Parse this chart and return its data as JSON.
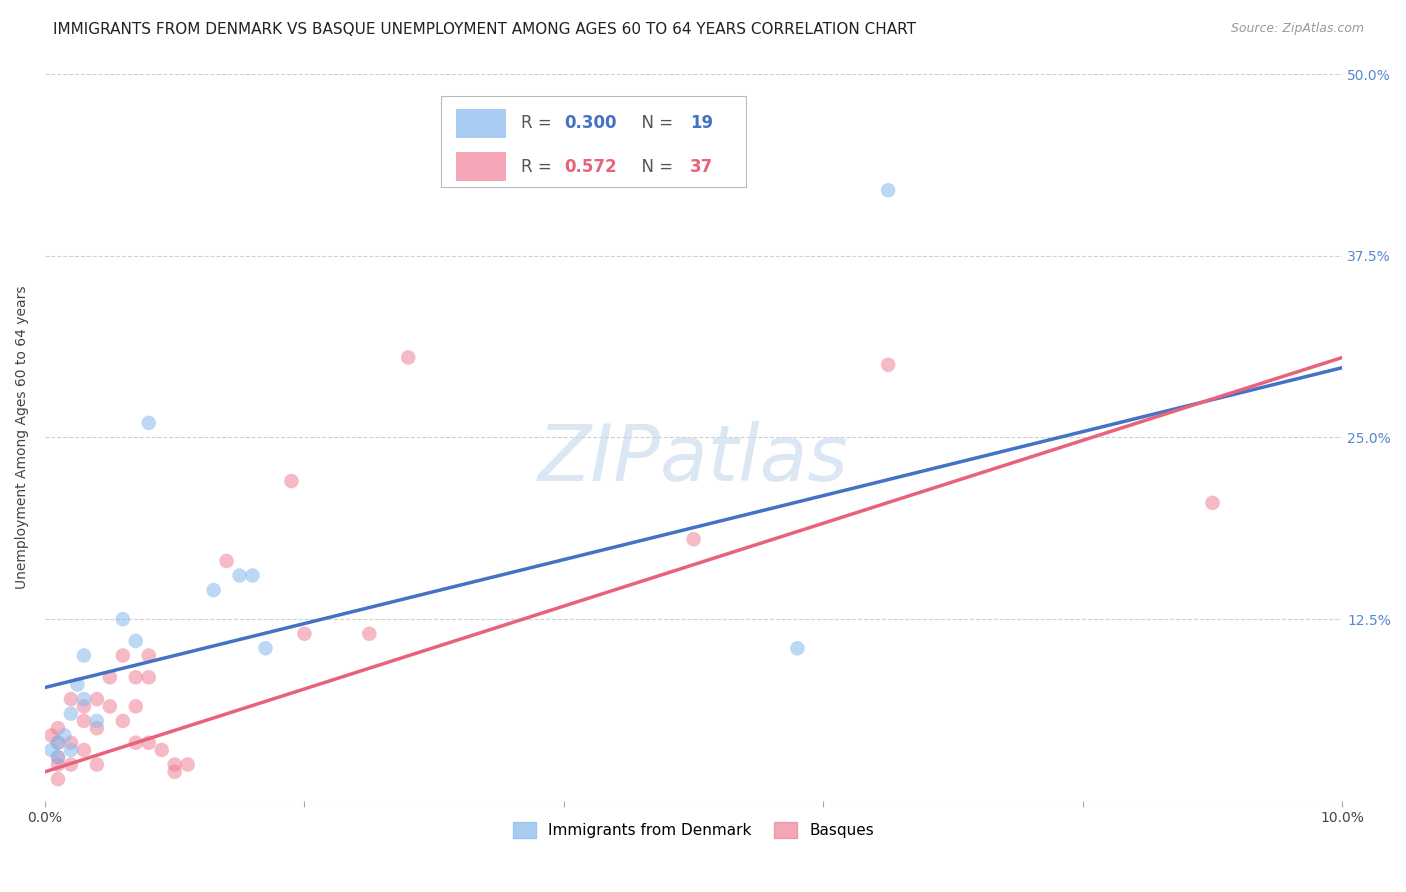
{
  "title": "IMMIGRANTS FROM DENMARK VS BASQUE UNEMPLOYMENT AMONG AGES 60 TO 64 YEARS CORRELATION CHART",
  "source": "Source: ZipAtlas.com",
  "ylabel": "Unemployment Among Ages 60 to 64 years",
  "blue_color": "#85b8ed",
  "pink_color": "#f08098",
  "blue_line_color": "#4472c4",
  "pink_line_color": "#e8637a",
  "watermark": "ZIPatlas",
  "xlim": [
    0.0,
    0.1
  ],
  "ylim": [
    0.0,
    0.5
  ],
  "blue_scatter_x": [
    0.0005,
    0.001,
    0.001,
    0.0015,
    0.002,
    0.002,
    0.0025,
    0.003,
    0.003,
    0.004,
    0.006,
    0.007,
    0.008,
    0.013,
    0.015,
    0.016,
    0.017,
    0.058,
    0.065
  ],
  "blue_scatter_y": [
    0.035,
    0.04,
    0.03,
    0.045,
    0.06,
    0.035,
    0.08,
    0.1,
    0.07,
    0.055,
    0.125,
    0.11,
    0.26,
    0.145,
    0.155,
    0.155,
    0.105,
    0.105,
    0.42
  ],
  "pink_scatter_x": [
    0.0005,
    0.001,
    0.001,
    0.001,
    0.001,
    0.001,
    0.002,
    0.002,
    0.002,
    0.003,
    0.003,
    0.003,
    0.004,
    0.004,
    0.004,
    0.005,
    0.005,
    0.006,
    0.006,
    0.007,
    0.007,
    0.007,
    0.008,
    0.008,
    0.008,
    0.009,
    0.01,
    0.01,
    0.011,
    0.014,
    0.019,
    0.02,
    0.025,
    0.028,
    0.05,
    0.065,
    0.09
  ],
  "pink_scatter_y": [
    0.045,
    0.05,
    0.04,
    0.03,
    0.025,
    0.015,
    0.07,
    0.04,
    0.025,
    0.065,
    0.055,
    0.035,
    0.07,
    0.05,
    0.025,
    0.085,
    0.065,
    0.1,
    0.055,
    0.085,
    0.065,
    0.04,
    0.1,
    0.085,
    0.04,
    0.035,
    0.025,
    0.02,
    0.025,
    0.165,
    0.22,
    0.115,
    0.115,
    0.305,
    0.18,
    0.3,
    0.205
  ],
  "blue_intercept": 0.078,
  "blue_slope": 2.2,
  "pink_intercept": 0.02,
  "pink_slope": 2.85,
  "grid_color": "#cccccc",
  "background_color": "#ffffff",
  "title_fontsize": 11,
  "axis_label_fontsize": 10,
  "tick_fontsize": 10,
  "marker_size": 110
}
